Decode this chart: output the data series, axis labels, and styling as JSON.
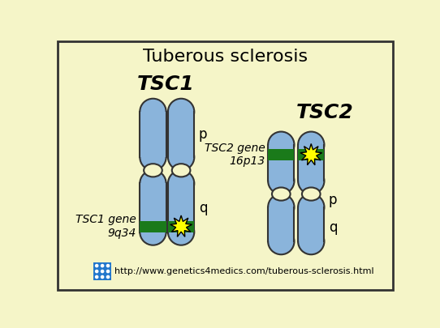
{
  "title": "Tuberous sclerosis",
  "background_color": "#f5f5c8",
  "border_color": "#333333",
  "chromosome_color": "#8ab4db",
  "chromosome_outline": "#333333",
  "gene_color": "#1a7a1a",
  "tsc1_label": "TSC1",
  "tsc2_label": "TSC2",
  "tsc1_gene_label": "TSC1 gene\n9q34",
  "tsc2_gene_label": "TSC2 gene\n16p13",
  "p_label": "p",
  "q_label": "q",
  "url_text": "http://www.genetics4medics.com/tuberous-sclerosis.html",
  "title_fontsize": 16,
  "tsc_label_fontsize": 18,
  "gene_label_fontsize": 10,
  "pq_fontsize": 12,
  "url_fontsize": 8,
  "icon_color": "#2277cc"
}
